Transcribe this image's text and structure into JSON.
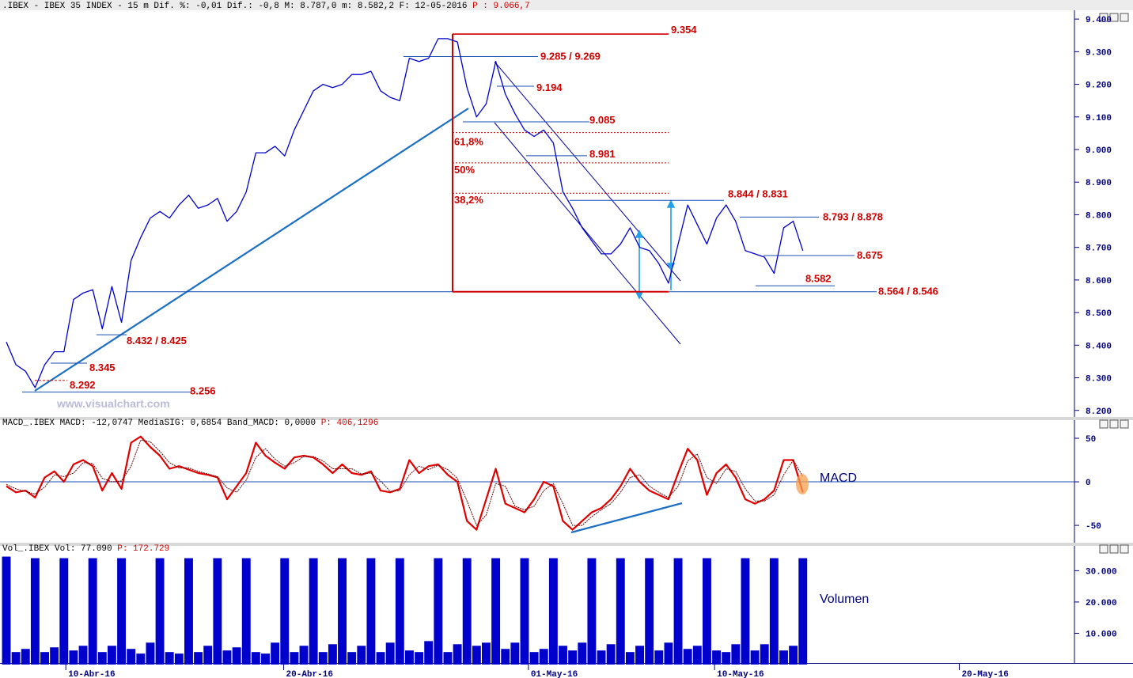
{
  "header": {
    "title": ".IBEX - IBEX 35 INDEX -  15 m Dif. %: -0,01 Dif.: -0,8 M: 8.787,0 m: 8.582,2 F: 12-05-2016",
    "price": "P : 9.066,7"
  },
  "watermark": "www.visualchart.com",
  "chart_data": [
    {
      "type": "line",
      "color": "#0000cc",
      "x": [
        0,
        1,
        2,
        3,
        4,
        5,
        6,
        7,
        8,
        9,
        10,
        11,
        12,
        13,
        14,
        15,
        16,
        17,
        18,
        19,
        20,
        21,
        22,
        23,
        24,
        25,
        26,
        27,
        28,
        29,
        30,
        31,
        32,
        33,
        34,
        35,
        36,
        37,
        38,
        39,
        40,
        41,
        42,
        43,
        44,
        45,
        46,
        47,
        48,
        49,
        50,
        51,
        52,
        53,
        54,
        55,
        56,
        57,
        58,
        59,
        60,
        61,
        62,
        63,
        64,
        65,
        66,
        67,
        68,
        69,
        70,
        71,
        72,
        73,
        74,
        75,
        76,
        77,
        78,
        79,
        80,
        81,
        82,
        83
      ],
      "values": [
        8410,
        8340,
        8320,
        8270,
        8340,
        8380,
        8380,
        8540,
        8560,
        8570,
        8450,
        8580,
        8470,
        8660,
        8730,
        8790,
        8810,
        8790,
        8830,
        8860,
        8820,
        8830,
        8850,
        8780,
        8810,
        8870,
        8990,
        8990,
        9010,
        8980,
        9060,
        9120,
        9180,
        9200,
        9190,
        9200,
        9230,
        9230,
        9240,
        9180,
        9160,
        9150,
        9280,
        9270,
        9280,
        9340,
        9340,
        9330,
        9190,
        9100,
        9140,
        9270,
        9170,
        9110,
        9060,
        9040,
        9060,
        9020,
        8870,
        8820,
        8760,
        8720,
        8680,
        8680,
        8710,
        8760,
        8700,
        8690,
        8650,
        8590,
        8710,
        8830,
        8770,
        8710,
        8790,
        8830,
        8780,
        8690,
        8680,
        8670,
        8620,
        8760,
        8780,
        8690
      ],
      "xlim": [
        -0.66,
        111.3
      ],
      "ylim": [
        8180,
        9427
      ],
      "yticks": [
        {
          "value": 8200,
          "label": "8.200"
        },
        {
          "value": 8300,
          "label": "8.300"
        },
        {
          "value": 8400,
          "label": "8.400"
        },
        {
          "value": 8500,
          "label": "8.500"
        },
        {
          "value": 8600,
          "label": "8.600"
        },
        {
          "value": 8700,
          "label": "8.700"
        },
        {
          "value": 8800,
          "label": "8.800"
        },
        {
          "value": 8900,
          "label": "8.900"
        },
        {
          "value": 9000,
          "label": "9.000"
        },
        {
          "value": 9100,
          "label": "9.100"
        },
        {
          "value": 9200,
          "label": "9.200"
        },
        {
          "value": 9300,
          "label": "9.300"
        },
        {
          "value": 9400,
          "label": "9.400"
        }
      ],
      "annotations": [
        {
          "label": "9.354",
          "value": 9354
        },
        {
          "label": "9.285 / 9.269",
          "value": 9285
        },
        {
          "label": "9.194",
          "value": 9194
        },
        {
          "label": "9.085",
          "value": 9085
        },
        {
          "label": "8.981",
          "value": 8981
        },
        {
          "label": "8.844 / 8.831",
          "value": 8844
        },
        {
          "label": "8.793 / 8.878",
          "value": 8793
        },
        {
          "label": "8.675",
          "value": 8675
        },
        {
          "label": "8.582",
          "value": 8582
        },
        {
          "label": "8.564 / 8.546",
          "value": 8564
        },
        {
          "label": "8.432 / 8.425",
          "value": 8432
        },
        {
          "label": "8.345",
          "value": 8345
        },
        {
          "label": "8.292",
          "value": 8292
        },
        {
          "label": "8.256",
          "value": 8256
        },
        {
          "label": "61,8%",
          "value": 9052
        },
        {
          "label": "50%",
          "value": 8959
        },
        {
          "label": "38,2%",
          "value": 8866
        }
      ]
    },
    {
      "type": "line",
      "title": "MACD_.IBEX MACD: -12,0747 MediaSIG: 0,6854 Band_MACD: 0,0000",
      "title_value": "P: 406,1296",
      "label": "MACD",
      "x": [
        0,
        1,
        2,
        3,
        4,
        5,
        6,
        7,
        8,
        9,
        10,
        11,
        12,
        13,
        14,
        15,
        16,
        17,
        18,
        19,
        20,
        21,
        22,
        23,
        24,
        25,
        26,
        27,
        28,
        29,
        30,
        31,
        32,
        33,
        34,
        35,
        36,
        37,
        38,
        39,
        40,
        41,
        42,
        43,
        44,
        45,
        46,
        47,
        48,
        49,
        50,
        51,
        52,
        53,
        54,
        55,
        56,
        57,
        58,
        59,
        60,
        61,
        62,
        63,
        64,
        65,
        66,
        67,
        68,
        69,
        70,
        71,
        72,
        73,
        74,
        75,
        76,
        77,
        78,
        79,
        80,
        81,
        82,
        83
      ],
      "series": [
        {
          "color": "#e00000",
          "values": [
            -5,
            -12,
            -10,
            -18,
            5,
            12,
            0,
            20,
            25,
            18,
            -10,
            10,
            -8,
            45,
            52,
            40,
            30,
            15,
            18,
            14,
            10,
            8,
            5,
            -20,
            -5,
            10,
            45,
            30,
            22,
            15,
            28,
            30,
            28,
            20,
            10,
            20,
            10,
            8,
            12,
            -10,
            -12,
            -8,
            25,
            10,
            18,
            20,
            8,
            0,
            -45,
            -55,
            -20,
            15,
            -25,
            -30,
            -35,
            -20,
            0,
            -5,
            -45,
            -55,
            -45,
            -35,
            -30,
            -20,
            -5,
            15,
            0,
            -10,
            -15,
            -20,
            10,
            38,
            25,
            -15,
            10,
            20,
            5,
            -20,
            -25,
            -20,
            -10,
            25,
            25,
            -12
          ]
        },
        {
          "color": "#600000",
          "values": [
            -3,
            -8,
            -11,
            -14,
            -6,
            8,
            6,
            10,
            22,
            21,
            4,
            0,
            1,
            18,
            48,
            46,
            35,
            22,
            16,
            16,
            12,
            9,
            6,
            -7,
            -12,
            2,
            28,
            38,
            26,
            18,
            22,
            29,
            29,
            24,
            15,
            15,
            15,
            9,
            10,
            1,
            -11,
            -10,
            8,
            18,
            14,
            19,
            14,
            4,
            -22,
            -50,
            -38,
            -2,
            -5,
            -28,
            -32,
            -28,
            -10,
            -2,
            -25,
            -50,
            -50,
            -40,
            -32,
            -25,
            -12,
            5,
            8,
            -5,
            -12,
            -18,
            -5,
            24,
            32,
            5,
            -2,
            15,
            12,
            -8,
            -22,
            -22,
            -15,
            8,
            25,
            6
          ]
        }
      ],
      "reference_line": 0,
      "xlim": [
        -0.66,
        111.3
      ],
      "ylim": [
        -69,
        60
      ],
      "yticks": [
        -50,
        0,
        50
      ]
    },
    {
      "type": "bar",
      "title": "Vol_.IBEX Vol: 77.090",
      "title_value": "P: 172.729",
      "label": "Volumen",
      "color": "#0000cc",
      "x": [
        0,
        1,
        2,
        3,
        4,
        5,
        6,
        7,
        8,
        9,
        10,
        11,
        12,
        13,
        14,
        15,
        16,
        17,
        18,
        19,
        20,
        21,
        22,
        23,
        24,
        25,
        26,
        27,
        28,
        29,
        30,
        31,
        32,
        33,
        34,
        35,
        36,
        37,
        38,
        39,
        40,
        41,
        42,
        43,
        44,
        45,
        46,
        47,
        48,
        49,
        50,
        51,
        52,
        53,
        54,
        55,
        56,
        57,
        58,
        59,
        60,
        61,
        62,
        63,
        64,
        65,
        66,
        67,
        68,
        69,
        70,
        71,
        72,
        73,
        74,
        75,
        76,
        77,
        78,
        79,
        80,
        81,
        82,
        83
      ],
      "values": [
        34500,
        4000,
        5000,
        34000,
        4000,
        5500,
        34000,
        4500,
        6000,
        34000,
        4000,
        6000,
        34000,
        5000,
        3500,
        7000,
        34000,
        4000,
        3500,
        34000,
        4000,
        6000,
        34000,
        4500,
        5500,
        34000,
        4000,
        3500,
        7000,
        34000,
        4000,
        6000,
        34000,
        4000,
        6500,
        34000,
        4000,
        6000,
        34000,
        4000,
        7000,
        34000,
        4500,
        4000,
        7500,
        34000,
        4000,
        6500,
        34000,
        6000,
        7000,
        34000,
        5000,
        7000,
        34000,
        4000,
        5000,
        34000,
        6000,
        4500,
        7000,
        34000,
        4500,
        6500,
        34000,
        4000,
        6000,
        34000,
        4500,
        7000,
        34000,
        5000,
        6000,
        34000,
        4500,
        4000,
        6500,
        34000,
        4500,
        6500,
        34000,
        4500,
        6000,
        34000
      ],
      "xlim": [
        -0.66,
        111.3
      ],
      "ylim": [
        0,
        35400
      ],
      "yticks": [
        {
          "value": 10000,
          "label": "10.000"
        },
        {
          "value": 20000,
          "label": "20.000"
        },
        {
          "value": 30000,
          "label": "30.000"
        }
      ],
      "xticks": [
        {
          "value": 6.2,
          "label": "10-Abr-16"
        },
        {
          "value": 28.9,
          "label": "20-Abr-16"
        },
        {
          "value": 54.4,
          "label": "01-May-16"
        },
        {
          "value": 73.8,
          "label": "10-May-16"
        },
        {
          "value": 99.3,
          "label": "20-May-16"
        }
      ]
    }
  ]
}
